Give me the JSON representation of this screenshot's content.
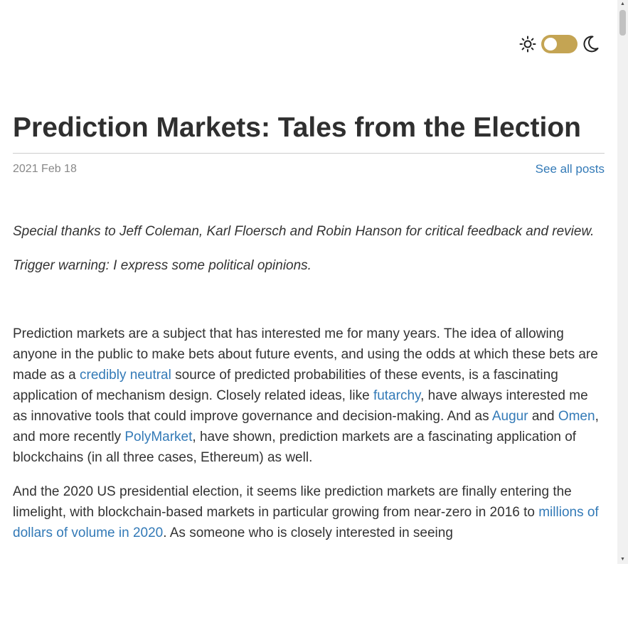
{
  "theme_toggle": {
    "light_icon": "sun-icon",
    "dark_icon": "moon-icon",
    "accent_color": "#c4a453",
    "state": "light"
  },
  "post": {
    "title": "Prediction Markets: Tales from the Election",
    "date": "2021 Feb 18",
    "see_all_label": "See all posts",
    "thanks": "Special thanks to Jeff Coleman, Karl Floersch and Robin Hanson for critical feedback and review.",
    "warning": "Trigger warning: I express some political opinions.",
    "p1": {
      "t1": "Prediction markets are a subject that has interested me for many years. The idea of allowing anyone in the public to make bets about future events, and using the odds at which these bets are made as a ",
      "link_credibly_neutral": "credibly neutral",
      "t2": " source of predicted probabilities of these events, is a fascinating application of mechanism design. Closely related ideas, like ",
      "link_futarchy": "futarchy",
      "t3": ", have always interested me as innovative tools that could improve governance and decision-making. And as ",
      "link_augur": "Augur",
      "t4": " and ",
      "link_omen": "Omen",
      "t5": ", and more recently ",
      "link_polymarket": "PolyMarket",
      "t6": ", have shown, prediction markets are a fascinating application of blockchains (in all three cases, Ethereum) as well."
    },
    "p2": {
      "t1": "And the 2020 US presidential election, it seems like prediction markets are finally entering the limelight, with blockchain-based markets in particular growing from near-zero in 2016 to ",
      "link_millions": "millions of dollars of volume in 2020",
      "t2": ". As someone who is closely interested in seeing"
    }
  },
  "colors": {
    "link": "#337ab7",
    "text": "#333333",
    "muted": "#888888"
  }
}
